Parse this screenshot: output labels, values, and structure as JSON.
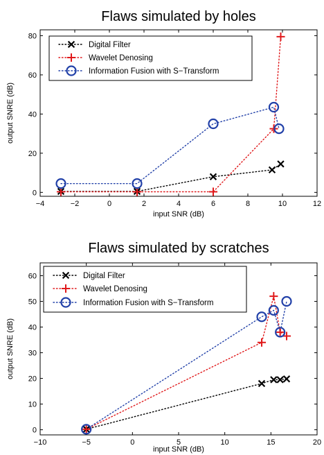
{
  "chart_data": [
    {
      "type": "scatter",
      "title": "Flaws simulated by holes",
      "xlabel": "input SNR (dB)",
      "ylabel": "output SNRE (dB)",
      "xlim": [
        -4,
        12
      ],
      "ylim": [
        -2,
        83
      ],
      "xticks": [
        -4,
        -2,
        0,
        2,
        4,
        6,
        8,
        10,
        12
      ],
      "yticks": [
        0,
        20,
        40,
        60,
        80
      ],
      "xtick_labels": [
        "−4",
        "−2",
        "0",
        "2",
        "4",
        "6",
        "8",
        "10",
        "12"
      ],
      "ytick_labels": [
        "0",
        "20",
        "40",
        "60",
        "80"
      ],
      "legend_position": "top-left",
      "series": [
        {
          "name": "Digital Filter",
          "color": "#000000",
          "marker": "x",
          "x": [
            -2.8,
            1.6,
            6.0,
            9.4,
            9.9
          ],
          "y": [
            0.5,
            0.5,
            8.0,
            11.5,
            14.5
          ]
        },
        {
          "name": "Wavelet Denosing",
          "color": "#e0191b",
          "marker": "+",
          "x": [
            -2.8,
            1.6,
            6.0,
            9.5,
            9.9
          ],
          "y": [
            0.3,
            0.3,
            0.3,
            32.5,
            79.5
          ]
        },
        {
          "name": "Information Fusion with S−Transform",
          "color": "#2140a8",
          "marker": "o",
          "x": [
            -2.8,
            1.6,
            6.0,
            9.5,
            9.8
          ],
          "y": [
            4.5,
            4.5,
            35.0,
            43.5,
            32.5
          ]
        }
      ]
    },
    {
      "type": "scatter",
      "title": "Flaws simulated by scratches",
      "xlabel": "input SNR (dB)",
      "ylabel": "output SNRE (dB)",
      "xlim": [
        -10,
        20
      ],
      "ylim": [
        -2,
        65
      ],
      "xticks": [
        -10,
        -5,
        0,
        5,
        10,
        15,
        20
      ],
      "yticks": [
        0,
        10,
        20,
        30,
        40,
        50,
        60
      ],
      "xtick_labels": [
        "−10",
        "−5",
        "0",
        "5",
        "10",
        "15",
        "20"
      ],
      "ytick_labels": [
        "0",
        "10",
        "20",
        "30",
        "40",
        "50",
        "60"
      ],
      "legend_position": "top-left",
      "series": [
        {
          "name": "Digital Filter",
          "color": "#000000",
          "marker": "x",
          "x": [
            -5.0,
            14.0,
            15.3,
            16.0,
            16.7
          ],
          "y": [
            0.2,
            18.0,
            19.5,
            19.5,
            19.8
          ]
        },
        {
          "name": "Wavelet Denosing",
          "color": "#e0191b",
          "marker": "+",
          "x": [
            -5.0,
            14.0,
            15.3,
            16.0,
            16.7
          ],
          "y": [
            0.2,
            34.0,
            52.0,
            38.0,
            36.5
          ]
        },
        {
          "name": "Information Fusion with S−Transform",
          "color": "#2140a8",
          "marker": "o",
          "x": [
            -5.0,
            14.0,
            15.3,
            16.0,
            16.7
          ],
          "y": [
            0.2,
            44.0,
            46.5,
            38.0,
            50.0
          ]
        }
      ]
    }
  ]
}
